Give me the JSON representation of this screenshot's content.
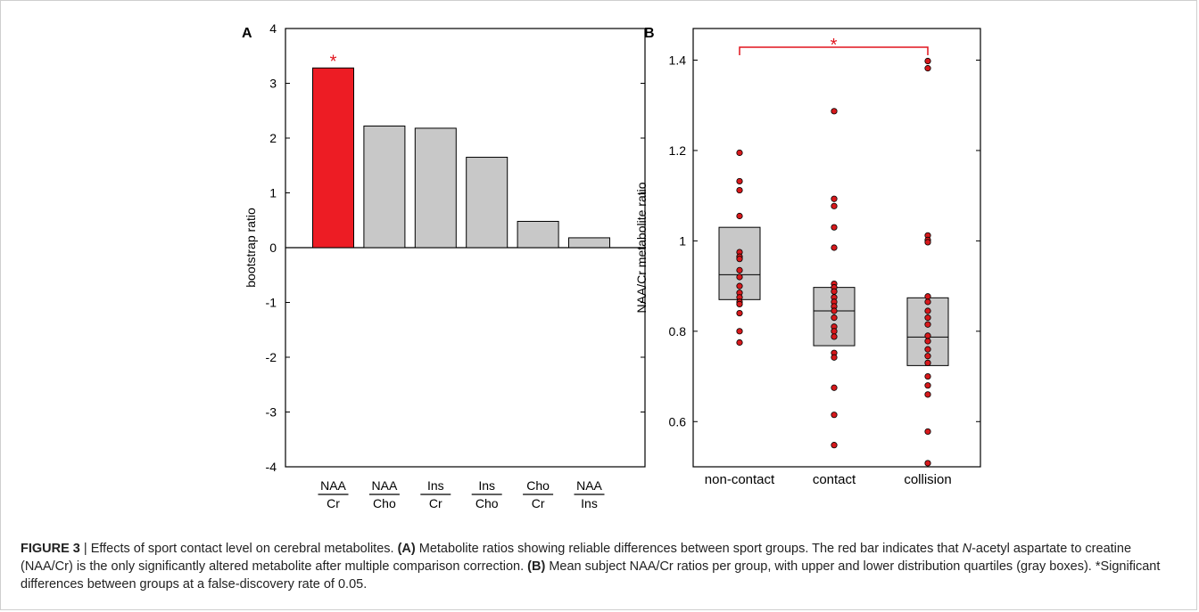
{
  "colors": {
    "highlight_bar": "#ed1c24",
    "gray_bar": "#c8c8c8",
    "marker_fill": "#d7191c",
    "significance": "#e0141d",
    "figure_label": "#ed1c24",
    "axis": "#000000"
  },
  "caption": {
    "figure_label": "FIGURE 3",
    "separator": " | ",
    "title": "Effects of sport contact level on cerebral metabolites. ",
    "a_label": "(A)",
    "a_text_1": " Metabolite ratios showing reliable differences between sport groups. The red bar indicates that ",
    "a_italic": "N",
    "a_text_2": "-acetyl aspartate to creatine (NAA/Cr) is the only significantly altered metabolite after multiple comparison correction. ",
    "b_label": "(B)",
    "b_text": " Mean subject NAA/Cr ratios per group, with upper and lower distribution quartiles (gray boxes). *Significant differences between groups at a false-discovery rate of 0.05."
  },
  "chart_data": [
    {
      "panel": "A",
      "type": "bar",
      "ylabel": "bootstrap ratio",
      "ylim": [
        -4,
        4
      ],
      "yticks": [
        -4,
        -3,
        -2,
        -1,
        0,
        1,
        2,
        3,
        4
      ],
      "categories": [
        {
          "numerator": "NAA",
          "denominator": "Cr"
        },
        {
          "numerator": "NAA",
          "denominator": "Cho"
        },
        {
          "numerator": "Ins",
          "denominator": "Cr"
        },
        {
          "numerator": "Ins",
          "denominator": "Cho"
        },
        {
          "numerator": "Cho",
          "denominator": "Cr"
        },
        {
          "numerator": "NAA",
          "denominator": "Ins"
        }
      ],
      "values": [
        3.28,
        2.22,
        2.18,
        1.65,
        0.48,
        0.18
      ],
      "highlight_index": 0,
      "significance_marker": "*"
    },
    {
      "panel": "B",
      "type": "scatter",
      "ylabel": "NAA/Cr metabolite ratio",
      "ylim": [
        0.5,
        1.47
      ],
      "yticks": [
        0.6,
        0.8,
        1,
        1.2,
        1.4
      ],
      "ytick_labels": [
        "0.6",
        "0.8",
        "1",
        "1.2",
        "1.4"
      ],
      "categories": [
        "non-contact",
        "contact",
        "collision"
      ],
      "boxes": [
        {
          "q1": 0.87,
          "median": 0.925,
          "q3": 1.03
        },
        {
          "q1": 0.768,
          "median": 0.845,
          "q3": 0.897
        },
        {
          "q1": 0.724,
          "median": 0.787,
          "q3": 0.874
        }
      ],
      "points": [
        [
          1.195,
          1.132,
          1.112,
          1.055,
          0.975,
          0.965,
          0.96,
          0.935,
          0.92,
          0.9,
          0.885,
          0.875,
          0.865,
          0.86,
          0.84,
          0.8,
          0.775
        ],
        [
          1.287,
          1.093,
          1.077,
          1.03,
          0.985,
          0.905,
          0.897,
          0.888,
          0.875,
          0.865,
          0.855,
          0.845,
          0.83,
          0.81,
          0.8,
          0.788,
          0.752,
          0.742,
          0.675,
          0.615,
          0.548
        ],
        [
          1.398,
          1.382,
          1.012,
          1.002,
          0.997,
          0.877,
          0.865,
          0.845,
          0.83,
          0.815,
          0.79,
          0.778,
          0.76,
          0.745,
          0.73,
          0.7,
          0.68,
          0.66,
          0.578,
          0.508
        ]
      ],
      "significance": {
        "from": 0,
        "to": 2,
        "marker": "*"
      }
    }
  ]
}
